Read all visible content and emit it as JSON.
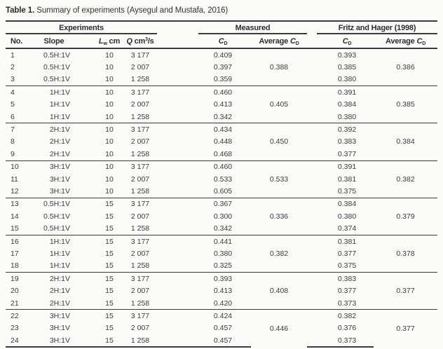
{
  "title": {
    "label": "Table 1.",
    "caption": " Summary of experiments (Aysegul and Mustafa, 2016)"
  },
  "table": {
    "groups": [
      "Experiments",
      "Measured",
      "Fritz and Hager (1998)"
    ],
    "columns": {
      "no": "No.",
      "slope": "Slope",
      "lw": {
        "symbol": "L",
        "sub": "w",
        "unit": " cm"
      },
      "q": {
        "symbol": "Q",
        "unit_base": " cm",
        "unit_sup": "3",
        "unit_rest": "/s"
      },
      "cd": {
        "symbol": "C",
        "sub": "D"
      },
      "avg_cd": {
        "prefix": "Average ",
        "symbol": "C",
        "sub": "D"
      }
    },
    "rows": [
      {
        "no": "1",
        "slope": "0.5H:1V",
        "lw": "10",
        "q": "3 177",
        "cd_measured": "0.409",
        "avg_measured": "0.388",
        "cd_fh": "0.393",
        "avg_fh": "0.386"
      },
      {
        "no": "2",
        "slope": "0.5H:1V",
        "lw": "10",
        "q": "2 007",
        "cd_measured": "0.397",
        "cd_fh": "0.385"
      },
      {
        "no": "3",
        "slope": "0.5H:1V",
        "lw": "10",
        "q": "1 258",
        "cd_measured": "0.359",
        "cd_fh": "0.380"
      },
      {
        "no": "4",
        "slope": "1H:1V",
        "lw": "10",
        "q": "3 177",
        "cd_measured": "0.460",
        "avg_measured": "0.405",
        "cd_fh": "0.391",
        "avg_fh": "0.385"
      },
      {
        "no": "5",
        "slope": "1H:1V",
        "lw": "10",
        "q": "2 007",
        "cd_measured": "0.413",
        "cd_fh": "0.384"
      },
      {
        "no": "6",
        "slope": "1H:1V",
        "lw": "10",
        "q": "1 258",
        "cd_measured": "0.342",
        "cd_fh": "0.380"
      },
      {
        "no": "7",
        "slope": "2H:1V",
        "lw": "10",
        "q": "3 177",
        "cd_measured": "0.434",
        "avg_measured": "0.450",
        "cd_fh": "0.392",
        "avg_fh": "0.384"
      },
      {
        "no": "8",
        "slope": "2H:1V",
        "lw": "10",
        "q": "2 007",
        "cd_measured": "0.448",
        "cd_fh": "0.383"
      },
      {
        "no": "9",
        "slope": "2H:1V",
        "lw": "10",
        "q": "1 258",
        "cd_measured": "0.468",
        "cd_fh": "0.377"
      },
      {
        "no": "10",
        "slope": "3H:1V",
        "lw": "10",
        "q": "3 177",
        "cd_measured": "0.460",
        "avg_measured": "0.533",
        "cd_fh": "0.391",
        "avg_fh": "0.382"
      },
      {
        "no": "11",
        "slope": "3H:1V",
        "lw": "10",
        "q": "2 007",
        "cd_measured": "0.533",
        "cd_fh": "0.381"
      },
      {
        "no": "12",
        "slope": "3H:1V",
        "lw": "10",
        "q": "1 258",
        "cd_measured": "0.605",
        "cd_fh": "0.375"
      },
      {
        "no": "13",
        "slope": "0.5H:1V",
        "lw": "15",
        "q": "3 177",
        "cd_measured": "0.367",
        "avg_measured": "0.336",
        "cd_fh": "0.384",
        "avg_fh": "0.379"
      },
      {
        "no": "14",
        "slope": "0.5H:1V",
        "lw": "15",
        "q": "2 007",
        "cd_measured": "0.300",
        "cd_fh": "0.380"
      },
      {
        "no": "15",
        "slope": "0.5H:1V",
        "lw": "15",
        "q": "1 258",
        "cd_measured": "0.342",
        "cd_fh": "0.374"
      },
      {
        "no": "16",
        "slope": "1H:1V",
        "lw": "15",
        "q": "3 177",
        "cd_measured": "0.441",
        "avg_measured": "0.382",
        "cd_fh": "0.381",
        "avg_fh": "0.378"
      },
      {
        "no": "17",
        "slope": "1H:1V",
        "lw": "15",
        "q": "2 007",
        "cd_measured": "0.380",
        "cd_fh": "0.377"
      },
      {
        "no": "18",
        "slope": "1H:1V",
        "lw": "15",
        "q": "1 258",
        "cd_measured": "0.325",
        "cd_fh": "0.375"
      },
      {
        "no": "19",
        "slope": "2H:1V",
        "lw": "15",
        "q": "3 177",
        "cd_measured": "0.393",
        "avg_measured": "0.408",
        "cd_fh": "0.383",
        "avg_fh": "0.377"
      },
      {
        "no": "20",
        "slope": "2H:1V",
        "lw": "15",
        "q": "2 007",
        "cd_measured": "0.413",
        "cd_fh": "0.377"
      },
      {
        "no": "21",
        "slope": "2H:1V",
        "lw": "15",
        "q": "1 258",
        "cd_measured": "0.420",
        "cd_fh": "0.373"
      },
      {
        "no": "22",
        "slope": "3H:1V",
        "lw": "15",
        "q": "3 177",
        "cd_measured": "0.424",
        "avg_measured": "0.446",
        "cd_fh": "0.382",
        "avg_fh": "0.377"
      },
      {
        "no": "23",
        "slope": "3H:1V",
        "lw": "15",
        "q": "2 007",
        "cd_measured": "0.457",
        "cd_fh": "0.376"
      },
      {
        "no": "24",
        "slope": "3H:1V",
        "lw": "15",
        "q": "1 258",
        "cd_measured": "0.457",
        "cd_fh": "0.373"
      }
    ]
  },
  "colors": {
    "text": "#3b3b3b",
    "rule": "#3c3c3c",
    "background": "#fbfbfa"
  }
}
